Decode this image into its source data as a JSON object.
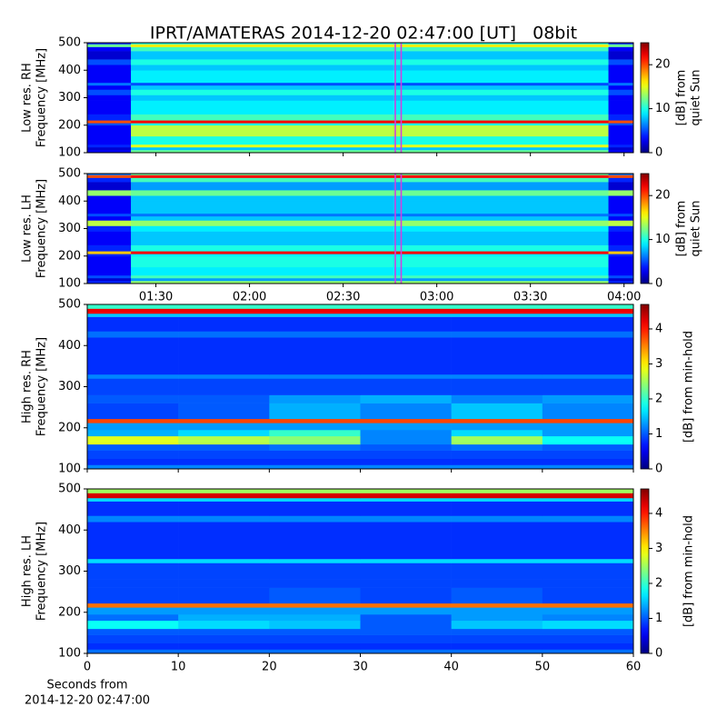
{
  "chart_data": [
    {
      "type": "heatmap",
      "title": "IPRT/AMATERAS 2014-12-20 02:47:00 [UT]   08bit",
      "ylabel": [
        "Low res. RH",
        "Frequency [MHz]"
      ],
      "colormap": "jet",
      "xlim": [
        68,
        243
      ],
      "ylim": [
        100,
        500
      ],
      "yticks": [
        100,
        200,
        300,
        400,
        500
      ],
      "xticks": [
        90,
        120,
        150,
        180,
        210,
        240
      ],
      "xticklabels": false,
      "x_edges": [
        68,
        82,
        235,
        243
      ],
      "y_edges": [
        100,
        110,
        120,
        130,
        160,
        200,
        208,
        218,
        240,
        290,
        310,
        330,
        345,
        355,
        400,
        420,
        440,
        470,
        485,
        495,
        500
      ],
      "z": [
        [
          3,
          12,
          3
        ],
        [
          2,
          8,
          2
        ],
        [
          4,
          15,
          4
        ],
        [
          3,
          10,
          3
        ],
        [
          3,
          14,
          3
        ],
        [
          5,
          10,
          5
        ],
        [
          20,
          22,
          20
        ],
        [
          4,
          11,
          4
        ],
        [
          3,
          9,
          3
        ],
        [
          3,
          8,
          3
        ],
        [
          5,
          10,
          5
        ],
        [
          3,
          8,
          3
        ],
        [
          6,
          5,
          6
        ],
        [
          3,
          9,
          3
        ],
        [
          3,
          8,
          3
        ],
        [
          5,
          10,
          5
        ],
        [
          2,
          8,
          2
        ],
        [
          3,
          11,
          3
        ],
        [
          12,
          16,
          12
        ],
        [
          4,
          10,
          4
        ]
      ],
      "markers": [
        {
          "x": 166.7,
          "color": "#d040e0"
        },
        {
          "x": 168.6,
          "color": "#d040e0"
        }
      ],
      "colorbar": {
        "label": [
          "[dB] from",
          "quiet Sun"
        ],
        "lim": [
          0,
          25
        ],
        "ticks": [
          0,
          10,
          20
        ]
      }
    },
    {
      "type": "heatmap",
      "ylabel": [
        "Low res. LH",
        "Frequency [MHz]"
      ],
      "colormap": "jet",
      "xlim": [
        68,
        243
      ],
      "ylim": [
        100,
        500
      ],
      "yticks": [
        100,
        200,
        300,
        400,
        500
      ],
      "xticks": [
        {
          "value": 90,
          "label": "01:30"
        },
        {
          "value": 120,
          "label": "02:00"
        },
        {
          "value": 150,
          "label": "02:30"
        },
        {
          "value": 180,
          "label": "03:00"
        },
        {
          "value": 210,
          "label": "03:30"
        },
        {
          "value": 240,
          "label": "04:00"
        }
      ],
      "x_edges": [
        68,
        82,
        235,
        243
      ],
      "y_edges": [
        100,
        110,
        120,
        130,
        160,
        200,
        208,
        218,
        240,
        290,
        310,
        330,
        345,
        355,
        400,
        420,
        440,
        470,
        485,
        495,
        500
      ],
      "z": [
        [
          4,
          13,
          4
        ],
        [
          2,
          7,
          2
        ],
        [
          5,
          11,
          5
        ],
        [
          3,
          9,
          3
        ],
        [
          3,
          10,
          3
        ],
        [
          4,
          9,
          4
        ],
        [
          17,
          22,
          17
        ],
        [
          4,
          10,
          4
        ],
        [
          3,
          8,
          3
        ],
        [
          4,
          9,
          4
        ],
        [
          14,
          13,
          14
        ],
        [
          3,
          8,
          3
        ],
        [
          5,
          6,
          5
        ],
        [
          3,
          8,
          3
        ],
        [
          3,
          8,
          3
        ],
        [
          13,
          12,
          13
        ],
        [
          2,
          7,
          2
        ],
        [
          4,
          11,
          4
        ],
        [
          20,
          22,
          20
        ],
        [
          6,
          12,
          6
        ]
      ],
      "markers": [
        {
          "x": 166.7,
          "color": "#d040e0"
        },
        {
          "x": 168.6,
          "color": "#d040e0"
        }
      ],
      "colorbar": {
        "label": [
          "[dB] from",
          "quiet Sun"
        ],
        "lim": [
          0,
          25
        ],
        "ticks": [
          0,
          10,
          20
        ]
      }
    },
    {
      "type": "heatmap",
      "ylabel": [
        "High res. RH",
        "Frequency [MHz]"
      ],
      "colormap": "jet",
      "xlim": [
        0,
        60
      ],
      "ylim": [
        100,
        500
      ],
      "yticks": [
        100,
        200,
        300,
        400,
        500
      ],
      "xticks": [
        0,
        10,
        20,
        30,
        40,
        50,
        60
      ],
      "xticklabels": false,
      "x_edges": [
        0,
        10,
        20,
        30,
        40,
        50,
        60
      ],
      "y_edges": [
        100,
        110,
        125,
        145,
        160,
        180,
        195,
        212,
        222,
        260,
        280,
        320,
        330,
        420,
        435,
        470,
        478,
        490,
        500
      ],
      "z": [
        [
          1.2,
          1.2,
          1.2,
          1.2,
          1.2,
          1.2
        ],
        [
          0.8,
          0.8,
          0.8,
          0.8,
          0.8,
          0.8
        ],
        [
          0.9,
          0.9,
          0.9,
          0.9,
          0.9,
          0.9
        ],
        [
          1,
          1,
          1.1,
          1,
          1.1,
          1
        ],
        [
          2.8,
          2.6,
          2.4,
          1.2,
          2.5,
          1.8
        ],
        [
          1.4,
          1.6,
          2,
          1.2,
          1.6,
          1.3
        ],
        [
          1.3,
          1.3,
          1.3,
          1.3,
          1.3,
          1.3
        ],
        [
          3.8,
          3.8,
          3.8,
          3.8,
          3.8,
          3.8
        ],
        [
          0.9,
          1,
          1.4,
          1.2,
          1.5,
          1.2
        ],
        [
          1,
          1,
          1.3,
          1.4,
          1.2,
          1.3
        ],
        [
          0.9,
          0.9,
          0.9,
          0.9,
          0.9,
          0.9
        ],
        [
          1.2,
          1.2,
          1.2,
          1.2,
          1.2,
          1.2
        ],
        [
          0.8,
          0.8,
          0.8,
          0.8,
          0.8,
          0.8
        ],
        [
          1.1,
          1.1,
          1.1,
          1.1,
          1.1,
          1.1
        ],
        [
          0.8,
          0.8,
          0.8,
          0.8,
          0.8,
          0.8
        ],
        [
          1.5,
          1.5,
          1.5,
          1.5,
          1.5,
          1.5
        ],
        [
          4.2,
          4.2,
          4.2,
          4.2,
          4.2,
          4.2
        ],
        [
          2,
          2,
          2,
          2,
          2,
          2
        ]
      ],
      "colorbar": {
        "label": [
          "[dB] from min-hold"
        ],
        "lim": [
          0,
          4.7
        ],
        "ticks": [
          0,
          1,
          2,
          3,
          4
        ]
      }
    },
    {
      "type": "heatmap",
      "ylabel": [
        "High res. LH",
        "Frequency [MHz]"
      ],
      "xlabel": [
        "Seconds from",
        "2014-12-20 02:47:00"
      ],
      "colormap": "jet",
      "xlim": [
        0,
        60
      ],
      "ylim": [
        100,
        500
      ],
      "yticks": [
        100,
        200,
        300,
        400,
        500
      ],
      "xticks": [
        0,
        10,
        20,
        30,
        40,
        50,
        60
      ],
      "x_edges": [
        0,
        10,
        20,
        30,
        40,
        50,
        60
      ],
      "y_edges": [
        100,
        110,
        125,
        145,
        160,
        180,
        195,
        212,
        222,
        260,
        280,
        320,
        330,
        420,
        435,
        470,
        478,
        490,
        500
      ],
      "z": [
        [
          1.1,
          1.1,
          1.1,
          1.1,
          1.1,
          1.1
        ],
        [
          0.8,
          0.8,
          0.8,
          0.8,
          0.8,
          0.8
        ],
        [
          0.9,
          0.9,
          0.9,
          0.9,
          0.9,
          0.9
        ],
        [
          1,
          1,
          1,
          1,
          1,
          1
        ],
        [
          1.8,
          1.6,
          1.5,
          1,
          1.5,
          1.6
        ],
        [
          1.1,
          1.4,
          1.4,
          1,
          1.3,
          1.2
        ],
        [
          1.3,
          1.3,
          1.3,
          1.3,
          1.3,
          1.3
        ],
        [
          3.6,
          3.6,
          3.6,
          3.6,
          3.6,
          3.6
        ],
        [
          0.9,
          0.9,
          1,
          0.9,
          1,
          0.9
        ],
        [
          0.9,
          0.9,
          0.9,
          0.9,
          0.9,
          0.9
        ],
        [
          0.9,
          0.9,
          0.9,
          0.9,
          0.9,
          0.9
        ],
        [
          1.6,
          1.6,
          1.6,
          1.6,
          1.6,
          1.6
        ],
        [
          0.8,
          0.8,
          0.8,
          0.8,
          0.8,
          0.8
        ],
        [
          1.2,
          1.2,
          1.2,
          1.2,
          1.2,
          1.2
        ],
        [
          0.8,
          0.8,
          0.8,
          0.8,
          0.8,
          0.8
        ],
        [
          1.6,
          1.6,
          1.6,
          1.6,
          1.6,
          1.6
        ],
        [
          4.3,
          4.3,
          4.3,
          4.3,
          4.3,
          4.3
        ],
        [
          2.5,
          2.5,
          2.5,
          2.5,
          2.5,
          2.5
        ]
      ],
      "colorbar": {
        "label": [
          "[dB] from min-hold"
        ],
        "lim": [
          0,
          4.7
        ],
        "ticks": [
          0,
          1,
          2,
          3,
          4
        ]
      }
    }
  ]
}
